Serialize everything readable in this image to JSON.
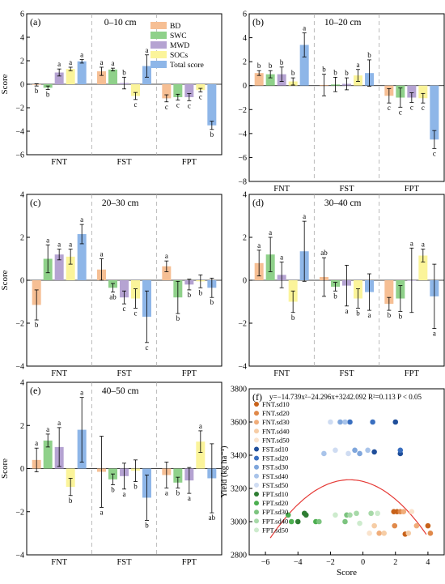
{
  "colors": {
    "BD": "#f6bf94",
    "SWC": "#8fd18a",
    "MWD": "#b5a3d2",
    "SOCs": "#fbf49a",
    "Total score": "#8eb6e8"
  },
  "chart_data": [
    {
      "type": "bar",
      "panel": "(a)",
      "depth": "0–10 cm",
      "ylabel": "Score",
      "ylim": [
        -6,
        6
      ],
      "yticks": [
        -6,
        -4,
        -2,
        0,
        2,
        4,
        6
      ],
      "categories": [
        "FNT",
        "FST",
        "FPT"
      ],
      "legend": "top-right",
      "series": [
        {
          "name": "BD",
          "values": [
            -0.05,
            1.1,
            -1.2
          ],
          "errors": [
            0.1,
            0.35,
            0.3
          ],
          "letters": [
            "b",
            "a",
            "c"
          ]
        },
        {
          "name": "SWC",
          "values": [
            -0.3,
            1.25,
            -1.1
          ],
          "errors": [
            0.15,
            0.12,
            0.25
          ],
          "letters": [
            "b",
            "a",
            "c"
          ]
        },
        {
          "name": "MWD",
          "values": [
            1.0,
            0.1,
            -1.1
          ],
          "errors": [
            0.3,
            0.5,
            0.3
          ],
          "letters": [
            "a",
            "b",
            "c"
          ]
        },
        {
          "name": "SOCs",
          "values": [
            1.3,
            -1.0,
            -0.5
          ],
          "errors": [
            0.15,
            0.3,
            0.15
          ],
          "letters": [
            "a",
            "c",
            "c"
          ]
        },
        {
          "name": "Total score",
          "values": [
            1.95,
            1.55,
            -3.5
          ],
          "errors": [
            0.15,
            0.95,
            0.35
          ],
          "letters": [
            "a",
            "a",
            "b"
          ]
        }
      ]
    },
    {
      "type": "bar",
      "panel": "(b)",
      "depth": "10–20 cm",
      "ylabel": "",
      "ylim": [
        -8,
        6
      ],
      "yticks": [
        -8,
        -6,
        -4,
        -2,
        0,
        2,
        4,
        6
      ],
      "categories": [
        "FNT",
        "FST",
        "FPT"
      ],
      "series": [
        {
          "name": "BD",
          "values": [
            1.05,
            0.05,
            -0.85
          ],
          "errors": [
            0.2,
            0.9,
            0.6
          ],
          "letters": [
            "b",
            "b",
            "c"
          ]
        },
        {
          "name": "SWC",
          "values": [
            0.95,
            0.1,
            -1.0
          ],
          "errors": [
            0.3,
            0.6,
            0.8
          ],
          "letters": [
            "b",
            "b",
            "c"
          ]
        },
        {
          "name": "MWD",
          "values": [
            0.95,
            0.15,
            -1.0
          ],
          "errors": [
            0.6,
            0.5,
            0.4
          ],
          "letters": [
            "b",
            "b",
            "c"
          ]
        },
        {
          "name": "SOCs",
          "values": [
            0.35,
            0.85,
            -1.05
          ],
          "errors": [
            0.3,
            0.5,
            0.4
          ],
          "letters": [
            "b",
            "a",
            "c"
          ]
        },
        {
          "name": "Total score",
          "values": [
            3.4,
            1.05,
            -4.5
          ],
          "errors": [
            1.0,
            1.1,
            0.75
          ],
          "letters": [
            "a",
            "b",
            "c"
          ]
        }
      ]
    },
    {
      "type": "bar",
      "panel": "(c)",
      "depth": "20–30 cm",
      "ylabel": "Score",
      "ylim": [
        -4,
        4
      ],
      "yticks": [
        -4,
        -2,
        0,
        2,
        4
      ],
      "categories": [
        "FNT",
        "FST",
        "FPT"
      ],
      "series": [
        {
          "name": "BD",
          "values": [
            -1.15,
            0.5,
            0.65
          ],
          "errors": [
            0.7,
            0.5,
            0.25
          ],
          "letters": [
            "b",
            "a",
            "a"
          ]
        },
        {
          "name": "SWC",
          "values": [
            1.0,
            -0.35,
            -0.8
          ],
          "errors": [
            0.65,
            0.2,
            0.75
          ],
          "letters": [
            "a",
            "ab",
            "b"
          ]
        },
        {
          "name": "MWD",
          "values": [
            1.2,
            -0.8,
            -0.2
          ],
          "errors": [
            0.25,
            0.3,
            0.25
          ],
          "letters": [
            "a",
            "c",
            "b"
          ]
        },
        {
          "name": "SOCs",
          "values": [
            1.1,
            -0.85,
            -0.05
          ],
          "errors": [
            0.35,
            0.45,
            0.3
          ],
          "letters": [
            "a",
            "c",
            "b"
          ]
        },
        {
          "name": "Total score",
          "values": [
            2.15,
            -1.7,
            -0.35
          ],
          "errors": [
            0.45,
            1.2,
            0.45
          ],
          "letters": [
            "a",
            "c",
            "b"
          ]
        }
      ]
    },
    {
      "type": "bar",
      "panel": "(d)",
      "depth": "30–40 cm",
      "ylabel": "",
      "ylim": [
        -4,
        4
      ],
      "yticks": [
        -4,
        -2,
        0,
        2,
        4
      ],
      "categories": [
        "FNT",
        "FST",
        "FPT"
      ],
      "series": [
        {
          "name": "BD",
          "values": [
            0.8,
            0.15,
            -1.1
          ],
          "errors": [
            0.6,
            0.9,
            0.3
          ],
          "letters": [
            "a",
            "ab",
            "b"
          ]
        },
        {
          "name": "SWC",
          "values": [
            1.2,
            -0.3,
            -0.85
          ],
          "errors": [
            0.8,
            0.2,
            0.6
          ],
          "letters": [
            "a",
            "b",
            "b"
          ]
        },
        {
          "name": "MWD",
          "values": [
            0.25,
            -0.25,
            0.0
          ],
          "errors": [
            0.6,
            0.95,
            1.5
          ],
          "letters": [
            "a",
            "a",
            "a"
          ]
        },
        {
          "name": "SOCs",
          "values": [
            -1.0,
            -0.85,
            1.15
          ],
          "errors": [
            0.5,
            0.45,
            0.3
          ],
          "letters": [
            "b",
            "b",
            "a"
          ]
        },
        {
          "name": "Total score",
          "values": [
            1.35,
            -0.55,
            -0.75
          ],
          "errors": [
            1.4,
            0.85,
            1.5
          ],
          "letters": [
            "a",
            "a",
            "a"
          ]
        }
      ]
    },
    {
      "type": "bar",
      "panel": "(e)",
      "depth": "40–50 cm",
      "ylabel": "Score",
      "ylim": [
        -4,
        4
      ],
      "yticks": [
        -4,
        -2,
        0,
        2,
        4
      ],
      "categories": [
        "FNT",
        "FST",
        "FPT"
      ],
      "series": [
        {
          "name": "BD",
          "values": [
            0.4,
            -0.15,
            -0.3
          ],
          "errors": [
            0.55,
            1.65,
            0.6
          ],
          "letters": [
            "a",
            "a",
            "a"
          ]
        },
        {
          "name": "SWC",
          "values": [
            1.3,
            -0.5,
            -0.65
          ],
          "errors": [
            0.3,
            0.25,
            0.25
          ],
          "letters": [
            "a",
            "b",
            "b"
          ]
        },
        {
          "name": "MWD",
          "values": [
            1.0,
            -0.35,
            -0.55
          ],
          "errors": [
            0.9,
            0.6,
            0.6
          ],
          "letters": [
            "a",
            "a",
            "a"
          ]
        },
        {
          "name": "SOCs",
          "values": [
            -0.85,
            -0.1,
            1.25
          ],
          "errors": [
            0.4,
            0.5,
            0.5
          ],
          "letters": [
            "b",
            "b",
            "a"
          ]
        },
        {
          "name": "Total score",
          "values": [
            1.8,
            -1.35,
            -0.45
          ],
          "errors": [
            1.5,
            1.05,
            1.6
          ],
          "letters": [
            "a",
            "b",
            "ab"
          ]
        }
      ]
    },
    {
      "type": "scatter",
      "panel": "(f)",
      "xlabel": "Score",
      "ylabel": "Yield (kg ha⁻¹)",
      "xlim": [
        -7,
        5
      ],
      "ylim": [
        2800,
        3800
      ],
      "xticks": [
        -6,
        -4,
        -2,
        0,
        2,
        4
      ],
      "yticks": [
        2800,
        3000,
        3200,
        3400,
        3600,
        3800
      ],
      "equation": "y=−14.739x²−24.296x+3242.092 R²=0.113 P < 0.05",
      "fit": {
        "a": -14.739,
        "b": -24.296,
        "c": 3242.092,
        "color": "#e53935"
      },
      "legend_position": "top-left",
      "series": [
        {
          "name": "FNT.sd10",
          "color": "#c8621a",
          "points": [
            [
              4.0,
              2975
            ],
            [
              2.6,
              2925
            ],
            [
              1.9,
              3060
            ],
            [
              2.1,
              3060
            ]
          ]
        },
        {
          "name": "FNT.sd20",
          "color": "#e0894a",
          "points": [
            [
              4.15,
              2930
            ],
            [
              1.95,
              2975
            ],
            [
              2.3,
              3060
            ]
          ]
        },
        {
          "name": "FNT.sd30",
          "color": "#f0ad7a",
          "points": [
            [
              3.3,
              2975
            ],
            [
              2.5,
              3060
            ],
            [
              1.0,
              2930
            ]
          ]
        },
        {
          "name": "FNT.sd40",
          "color": "#f6cda6",
          "points": [
            [
              1.3,
              2930
            ],
            [
              0.7,
              2975
            ],
            [
              2.8,
              2930
            ]
          ]
        },
        {
          "name": "FNT.sd50",
          "color": "#fae3cc",
          "points": [
            [
              0.4,
              2930
            ],
            [
              3.0,
              3060
            ]
          ]
        },
        {
          "name": "FST.sd10",
          "color": "#1f4e9a",
          "points": [
            [
              2.0,
              3600
            ],
            [
              0.7,
              3420
            ],
            [
              2.3,
              3410
            ]
          ]
        },
        {
          "name": "FST.sd20",
          "color": "#3a6fc0",
          "points": [
            [
              0.6,
              3600
            ],
            [
              -0.8,
              3600
            ],
            [
              2.3,
              3430
            ]
          ]
        },
        {
          "name": "FST.sd30",
          "color": "#7fa6dc",
          "points": [
            [
              -1.4,
              3600
            ],
            [
              -0.5,
              3430
            ],
            [
              -0.2,
              3410
            ]
          ]
        },
        {
          "name": "FST.sd40",
          "color": "#a9c4ea",
          "points": [
            [
              -1.1,
              3600
            ],
            [
              0.3,
              3430
            ],
            [
              -2.4,
              3410
            ]
          ]
        },
        {
          "name": "FST.sd50",
          "color": "#cfdcf2",
          "points": [
            [
              -2.0,
              3600
            ],
            [
              -1.7,
              3430
            ],
            [
              -0.9,
              3410
            ]
          ]
        },
        {
          "name": "FPT.sd10",
          "color": "#2e7d32",
          "points": [
            [
              -3.6,
              3050
            ],
            [
              -4.0,
              3000
            ],
            [
              -3.5,
              3040
            ]
          ]
        },
        {
          "name": "FPT.sd20",
          "color": "#4caf50",
          "points": [
            [
              -4.4,
              3000
            ],
            [
              -4.6,
              3040
            ],
            [
              -2.9,
              3000
            ]
          ]
        },
        {
          "name": "FPT.sd30",
          "color": "#7cc47f",
          "points": [
            [
              -1.0,
              3040
            ],
            [
              -1.1,
              3000
            ],
            [
              -2.7,
              3000
            ]
          ]
        },
        {
          "name": "FPT.sd40",
          "color": "#a7d9a8",
          "points": [
            [
              -0.4,
              3050
            ],
            [
              -0.8,
              3040
            ],
            [
              0.5,
              3050
            ]
          ]
        },
        {
          "name": "FPT.sd50",
          "color": "#cdebcd",
          "points": [
            [
              -0.2,
              2990
            ],
            [
              0.9,
              3050
            ],
            [
              -1.7,
              3040
            ]
          ]
        }
      ]
    }
  ]
}
